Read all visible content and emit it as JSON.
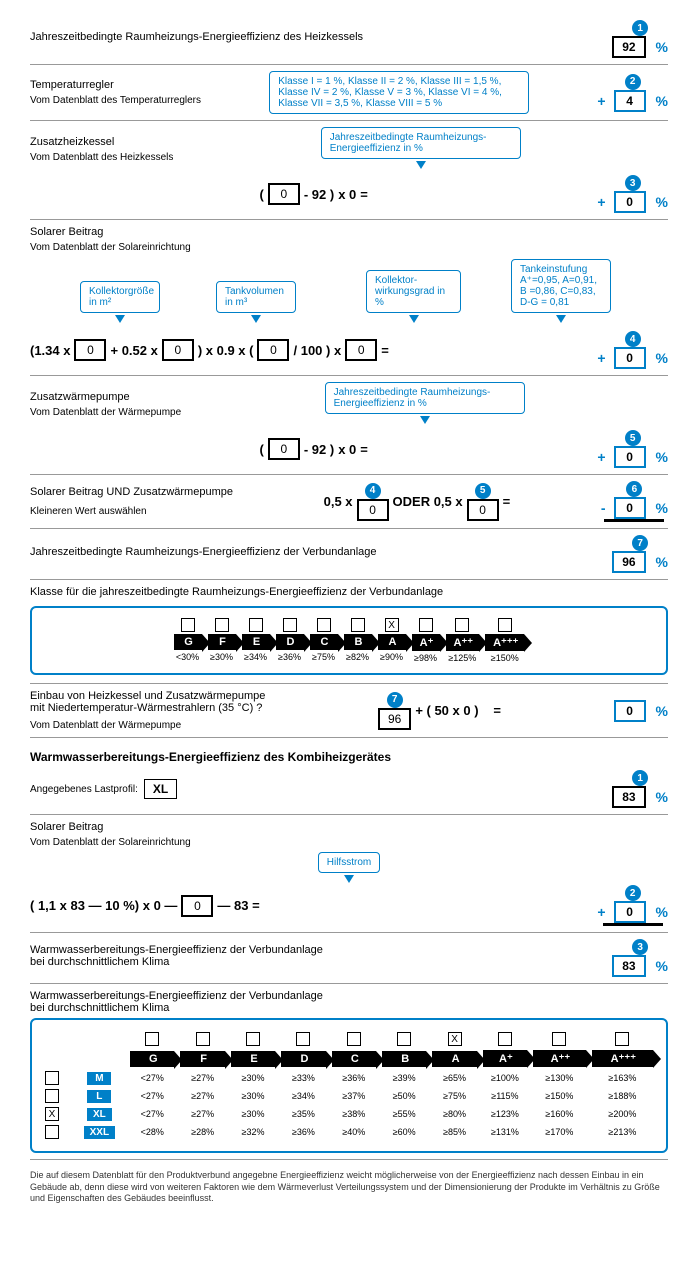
{
  "s1": {
    "title": "Jahreszeitbedingte Raumheizungs-Energieeffizienz des Heizkessels",
    "num": "1",
    "val": "92"
  },
  "s2": {
    "title": "Temperaturregler",
    "sub": "Vom Datenblatt des Temperaturreglers",
    "info": "Klasse I = 1 %, Klasse II = 2 %, Klasse III = 1,5 %, Klasse IV = 2 %, Klasse V = 3 %, Klasse VI = 4 %, Klasse VII = 3,5 %, Klasse VIII = 5 %",
    "num": "2",
    "val": "4"
  },
  "s3": {
    "title": "Zusatzheizkessel",
    "sub": "Vom Datenblatt des Heizkessels",
    "info": "Jahreszeitbedingte Raumheizungs-Energieeffizienz in %",
    "num": "3",
    "in": "0",
    "minus": "- 92 )",
    "mult": "x     0",
    "val": "0"
  },
  "s4": {
    "title": "Solarer Beitrag",
    "sub": "Vom Datenblatt der Solareinrichtung",
    "labels": [
      "Kollektorgröße in m²",
      "Tankvolumen in m³",
      "Kollektor-\nwirkungsgrad in %",
      "Tankeinstufung\nA⁺=0,95, A=0,91,\nB =0,86, C=0,83,\nD-G = 0,81"
    ],
    "pre": "(1.34 x",
    "plus": "+ 0.52 x",
    "mid": ")  x 0.9  x  (",
    "div": "/ 100 )    x",
    "in1": "0",
    "in2": "0",
    "in3": "0",
    "in4": "0",
    "num": "4",
    "val": "0"
  },
  "s5": {
    "title": "Zusatzwärmepumpe",
    "sub": "Vom Datenblatt der Wärmepumpe",
    "info": "Jahreszeitbedingte Raumheizungs-Energieeffizienz in %",
    "num": "5",
    "in": "0",
    "minus": "- 92 )",
    "mult": "x     0",
    "val": "0"
  },
  "s6": {
    "title": "Solarer Beitrag UND Zusatzwärmepumpe",
    "sub": "Kleineren Wert auswählen",
    "f1": "0,5 x",
    "f2": "ODER  0,5 x",
    "n4": "4",
    "n5": "5",
    "in4": "0",
    "in5": "0",
    "num": "6",
    "val": "0"
  },
  "s7": {
    "title": "Jahreszeitbedingte Raumheizungs-Energieeffizienz der Verbundanlage",
    "num": "7",
    "val": "96"
  },
  "s8": {
    "title": "Klasse für die jahreszeitbedingte Raumheizungs-Energieeffizienz der Verbundanlage",
    "classes": [
      "G",
      "F",
      "E",
      "D",
      "C",
      "B",
      "A",
      "A⁺",
      "A⁺⁺",
      "A⁺⁺⁺"
    ],
    "pcts": [
      "<30%",
      "≥30%",
      "≥34%",
      "≥36%",
      "≥75%",
      "≥82%",
      "≥90%",
      "≥98%",
      "≥125%",
      "≥150%"
    ],
    "checked": 6
  },
  "s9": {
    "title": "Einbau von Heizkessel und Zusatzwärmepumpe\nmit Niedertemperatur-Wärmestrahlern (35 °C) ?",
    "sub": "Vom Datenblatt der Wärmepumpe",
    "num": "7",
    "in": "96",
    "plus": "+ ( 50 x 0 )",
    "val": "0"
  },
  "ww1": {
    "title": "Warmwasserbereitungs-Energieeffizienz des Kombiheizgerätes",
    "sub": "Angegebenes Lastprofil:",
    "profile": "XL",
    "num": "1",
    "val": "83"
  },
  "ww2": {
    "title": "Solarer Beitrag",
    "sub": "Vom Datenblatt der Solareinrichtung",
    "info": "Hilfsstrom",
    "f": "( 1,1    x    83    —  10 %)    x    0    —",
    "in": "0",
    "suf": "—    83        =",
    "num": "2",
    "val": "0"
  },
  "ww3": {
    "title": "Warmwasserbereitungs-Energieeffizienz der Verbundanlage\nbei durchschnittlichem Klima",
    "num": "3",
    "val": "83"
  },
  "ww4": {
    "title": "Warmwasserbereitungs-Energieeffizienz der Verbundanlage\nbei durchschnittlichem Klima",
    "classes": [
      "G",
      "F",
      "E",
      "D",
      "C",
      "B",
      "A",
      "A⁺",
      "A⁺⁺",
      "A⁺⁺⁺"
    ],
    "checked": 6,
    "sizes": [
      "M",
      "L",
      "XL",
      "XXL"
    ],
    "sizeChecked": 2,
    "rows": [
      [
        "<27%",
        "≥27%",
        "≥30%",
        "≥33%",
        "≥36%",
        "≥39%",
        "≥65%",
        "≥100%",
        "≥130%",
        "≥163%"
      ],
      [
        "<27%",
        "≥27%",
        "≥30%",
        "≥34%",
        "≥37%",
        "≥50%",
        "≥75%",
        "≥115%",
        "≥150%",
        "≥188%"
      ],
      [
        "<27%",
        "≥27%",
        "≥30%",
        "≥35%",
        "≥38%",
        "≥55%",
        "≥80%",
        "≥123%",
        "≥160%",
        "≥200%"
      ],
      [
        "<28%",
        "≥28%",
        "≥32%",
        "≥36%",
        "≥40%",
        "≥60%",
        "≥85%",
        "≥131%",
        "≥170%",
        "≥213%"
      ]
    ]
  },
  "footer": "Die auf diesem Datenblatt für den Produktverbund angegebne Energieeffizienz weicht möglicherweise von der Energieeffizienz nach dessen Einbau in ein Gebäude ab, denn diese wird von weiteren Faktoren wie dem Wärmeverlust Verteilungssystem und der Dimensionierung der Produkte im Verhältnis zu Größe und Eigenschaften des Gebäudes beeinflusst."
}
